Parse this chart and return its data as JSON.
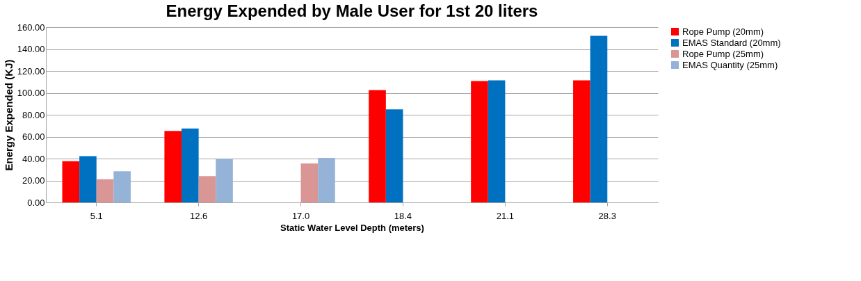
{
  "chart_data": {
    "type": "bar",
    "title": "Energy Expended by Male User for 1st 20 liters",
    "xlabel": "Static Water Level Depth (meters)",
    "ylabel": "Energy Expended (KJ)",
    "categories": [
      "5.1",
      "12.6",
      "17.0",
      "18.4",
      "21.1",
      "28.3"
    ],
    "series": [
      {
        "name": "Rope Pump (20mm)",
        "color": "#ff0000",
        "values": [
          37.6,
          65.3,
          null,
          102.5,
          110.8,
          111.4
        ]
      },
      {
        "name": "EMAS Standard (20mm)",
        "color": "#0070c0",
        "values": [
          42.2,
          67.5,
          null,
          85.0,
          111.4,
          152.0
        ]
      },
      {
        "name": "Rope Pump (25mm)",
        "color": "#d99694",
        "values": [
          21.2,
          23.9,
          35.6,
          null,
          null,
          null
        ]
      },
      {
        "name": "EMAS Quantity (25mm)",
        "color": "#95b3d7",
        "values": [
          28.4,
          39.8,
          40.6,
          null,
          null,
          null
        ]
      }
    ],
    "ylim": [
      0,
      160
    ],
    "yticks": [
      {
        "value": 0,
        "label": "0.00"
      },
      {
        "value": 20,
        "label": "20.00"
      },
      {
        "value": 40,
        "label": "40.00"
      },
      {
        "value": 60,
        "label": "60.00"
      },
      {
        "value": 80,
        "label": "80.00"
      },
      {
        "value": 100,
        "label": "100.00"
      },
      {
        "value": 120,
        "label": "120.00"
      },
      {
        "value": 140,
        "label": "140.00"
      },
      {
        "value": 160,
        "label": "160.00"
      }
    ],
    "grid": "y",
    "legend": "right"
  }
}
